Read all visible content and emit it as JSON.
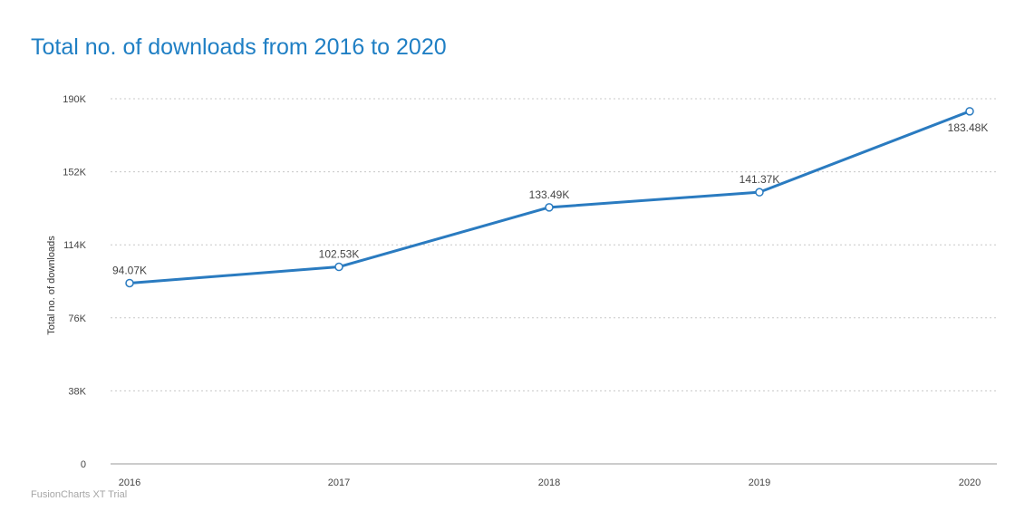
{
  "chart_data": {
    "type": "line",
    "title": "Total no. of downloads from 2016 to 2020",
    "xlabel": "",
    "ylabel": "Total no. of downloads",
    "categories": [
      "2016",
      "2017",
      "2018",
      "2019",
      "2020"
    ],
    "series": [
      {
        "values": [
          94070,
          102530,
          133490,
          141370,
          183480
        ],
        "labels": [
          "94.07K",
          "102.53K",
          "133.49K",
          "141.37K",
          "183.48K"
        ]
      }
    ],
    "ylim": [
      0,
      190000
    ],
    "y_ticks": [
      0,
      38000,
      76000,
      114000,
      152000,
      190000
    ],
    "y_tick_labels": [
      "0",
      "38K",
      "76K",
      "114K",
      "152K",
      "190K"
    ],
    "grid": "horizontal dotted",
    "legend": "none",
    "colors": {
      "title": "#1f7fc4",
      "line": "#2a7bc0",
      "marker_fill": "#ffffff",
      "grid": "#c8c8c8",
      "axis": "#999999"
    }
  },
  "watermark": "FusionCharts XT Trial"
}
